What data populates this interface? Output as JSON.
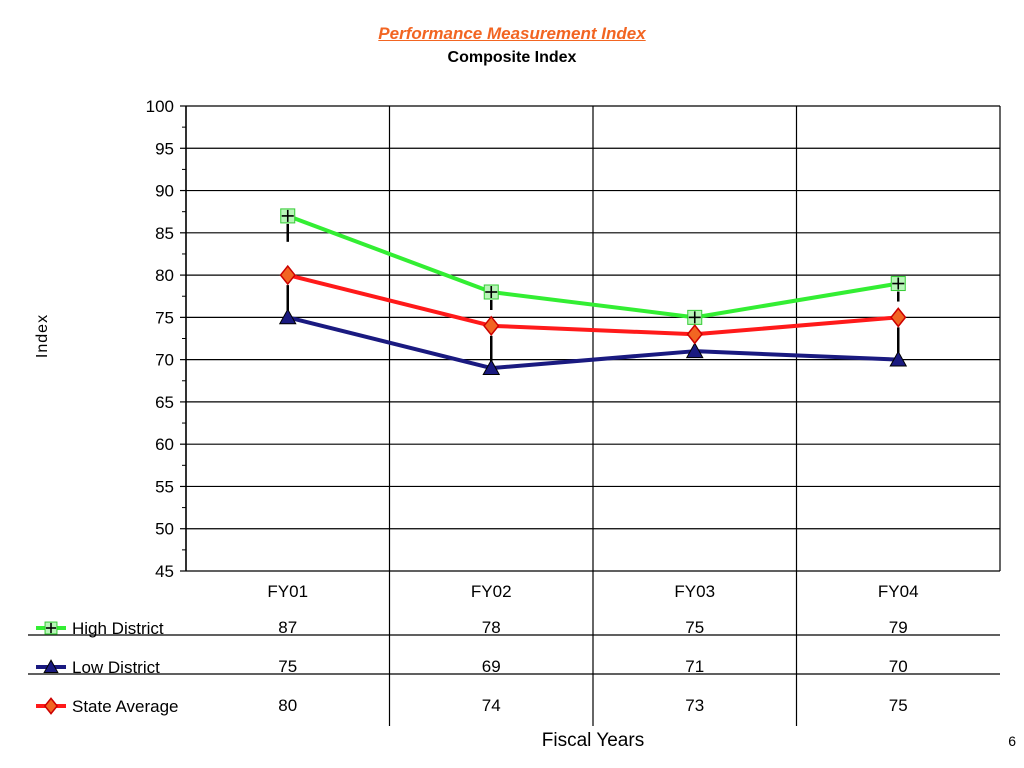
{
  "page_number": "6",
  "chart_data": {
    "type": "line",
    "title": "Performance Measurement Index",
    "subtitle": "Composite Index",
    "xlabel": "Fiscal Years",
    "ylabel": "Index",
    "ylim": [
      45,
      100
    ],
    "y_ticks": [
      "45",
      "50",
      "55",
      "60",
      "65",
      "70",
      "75",
      "80",
      "85",
      "90",
      "95",
      "100"
    ],
    "categories": [
      "FY01",
      "FY02",
      "FY03",
      "FY04"
    ],
    "grid": true,
    "legend": "data-table-below",
    "series": [
      {
        "name": "High District",
        "values": [
          87,
          78,
          75,
          79
        ],
        "labels": [
          "87",
          "78",
          "75",
          "79"
        ],
        "color": "#33ee33",
        "marker": "plus"
      },
      {
        "name": "Low District",
        "values": [
          75,
          69,
          71,
          70
        ],
        "labels": [
          "75",
          "69",
          "71",
          "70"
        ],
        "color": "#1a1a80",
        "marker": "triangle"
      },
      {
        "name": "State Average",
        "values": [
          80,
          74,
          73,
          75
        ],
        "labels": [
          "80",
          "74",
          "73",
          "75"
        ],
        "color": "#ff1a1a",
        "marker": "diamond"
      }
    ]
  }
}
